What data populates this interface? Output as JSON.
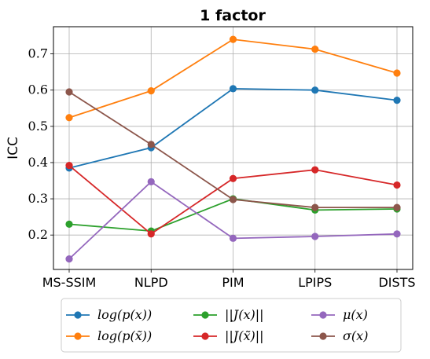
{
  "chart_data": {
    "type": "line",
    "title": "1 factor",
    "xlabel": "",
    "ylabel": "ICC",
    "categories": [
      "MS-SSIM",
      "NLPD",
      "PIM",
      "LPIPS",
      "DISTS"
    ],
    "ylim": [
      0.105,
      0.775
    ],
    "yticks": [
      0.2,
      0.3,
      0.4,
      0.5,
      0.6,
      0.7
    ],
    "ytick_labels": [
      "0.2",
      "0.3",
      "0.4",
      "0.5",
      "0.6",
      "0.7"
    ],
    "grid": true,
    "legend_position": "bottom-outside",
    "series": [
      {
        "name": "log(p(x))",
        "color": "#1f77b4",
        "values": [
          0.385,
          0.441,
          0.604,
          0.6,
          0.572
        ]
      },
      {
        "name": "log(p(x̃))",
        "color": "#ff7f0e",
        "values": [
          0.524,
          0.598,
          0.74,
          0.713,
          0.647
        ]
      },
      {
        "name": "||J(x)||",
        "color": "#2ca02c",
        "values": [
          0.23,
          0.211,
          0.3,
          0.269,
          0.272
        ]
      },
      {
        "name": "||J(x̃)||",
        "color": "#d62728",
        "values": [
          0.392,
          0.203,
          0.356,
          0.38,
          0.338
        ]
      },
      {
        "name": "μ(x)",
        "color": "#9467bd",
        "values": [
          0.134,
          0.347,
          0.191,
          0.196,
          0.203
        ]
      },
      {
        "name": "σ(x)",
        "color": "#8c564b",
        "values": [
          0.595,
          0.45,
          0.298,
          0.276,
          0.276
        ]
      }
    ]
  }
}
